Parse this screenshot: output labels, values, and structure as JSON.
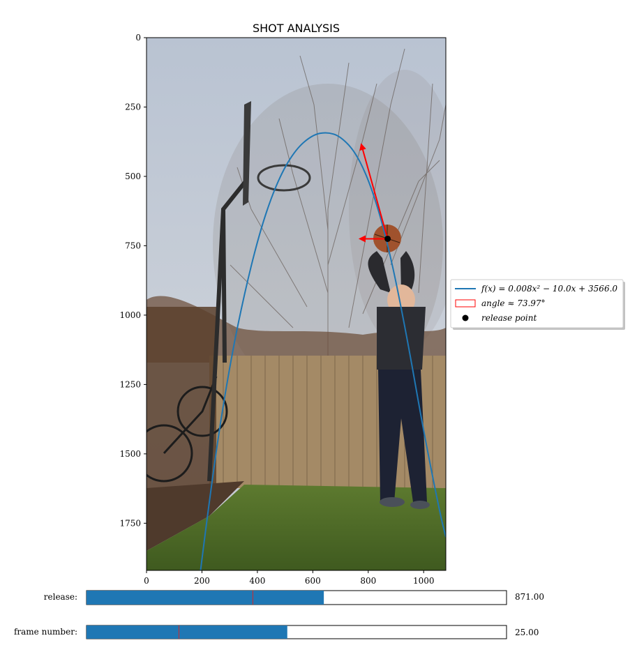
{
  "chart_data": {
    "type": "line",
    "title": "SHOT ANALYSIS",
    "xlabel": "",
    "ylabel": "",
    "xlim": [
      0,
      1080
    ],
    "ylim": [
      1920,
      0
    ],
    "y_inverted": true,
    "grid": false,
    "x_ticks": [
      0,
      200,
      400,
      600,
      800,
      1000
    ],
    "y_ticks": [
      0,
      250,
      500,
      750,
      1000,
      1250,
      1500,
      1750
    ],
    "background_description": "photo of a person shooting a basketball toward a hoop in a backyard",
    "series": [
      {
        "name": "$f(x) = 0.008x^2 - 10.0x + 3566.0$",
        "name_display": "f(x) = 0.008x² − 10.0x + 3566.0",
        "color": "#1f77b4",
        "kind": "curve",
        "x": [
          195,
          240,
          300,
          360,
          420,
          480,
          540,
          600,
          650,
          700,
          760,
          820,
          880,
          940,
          1000,
          1060,
          1080
        ],
        "y": [
          1920,
          1560,
          1180,
          890,
          660,
          500,
          400,
          350,
          340,
          355,
          420,
          560,
          780,
          1080,
          1420,
          1720,
          1800
        ]
      },
      {
        "name": "angle ≈ 73.97°",
        "color": "#ff0000",
        "kind": "angle-vectors",
        "origin": [
          870,
          725
        ],
        "vector_tip": [
          775,
          385
        ],
        "horizontal_tip": [
          770,
          725
        ]
      },
      {
        "name": "release point",
        "color": "#000000",
        "kind": "point",
        "x": [
          870
        ],
        "y": [
          725
        ]
      }
    ],
    "legend_placement": "center-right",
    "legend": [
      {
        "label": "f(x) = 0.008x² − 10.0x + 3566.0",
        "marker": "line",
        "color": "#1f77b4"
      },
      {
        "label": "angle ≈ 73.97°",
        "marker": "rect",
        "color": "#ff0000"
      },
      {
        "label": "release point",
        "marker": "dot",
        "color": "#000000"
      }
    ]
  },
  "sliders": [
    {
      "label": "release:",
      "value_text": "871.00",
      "fill_fraction": 0.565,
      "init_marker_fraction": 0.396,
      "color": "#1f77b4"
    },
    {
      "label": "frame number:",
      "value_text": "25.00",
      "fill_fraction": 0.478,
      "init_marker_fraction": 0.22,
      "color": "#1f77b4"
    }
  ]
}
